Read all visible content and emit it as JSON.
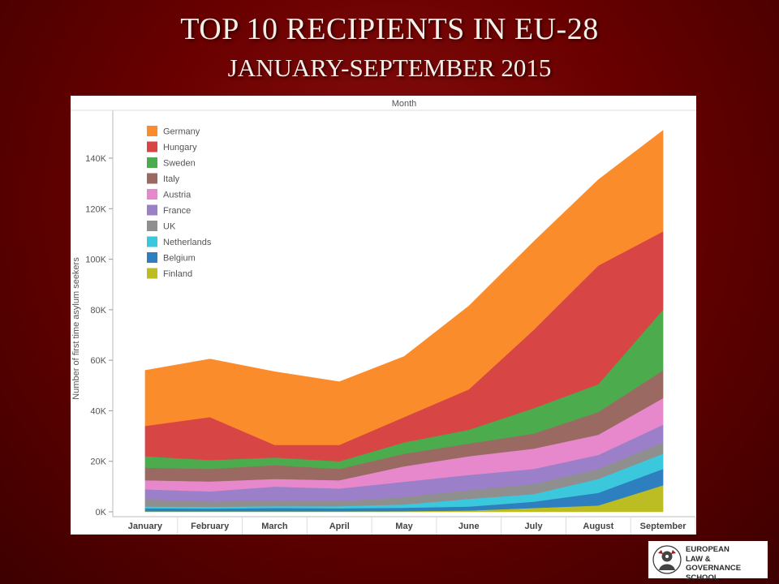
{
  "slide": {
    "title": "TOP 10 RECIPIENTS IN EU-28",
    "subtitle": "JANUARY-SEPTEMBER 2015"
  },
  "logo": {
    "line1": "EUROPEAN",
    "line2": "LAW & GOVERNANCE",
    "line3": "SCHOOL"
  },
  "chart_data": {
    "type": "area",
    "stacked": true,
    "header": "Month",
    "ylabel": "Number of first time asylum seekers",
    "xlabel": "",
    "categories": [
      "January",
      "February",
      "March",
      "April",
      "May",
      "June",
      "July",
      "August",
      "September"
    ],
    "ylim": [
      0,
      160000
    ],
    "yticks": [
      0,
      20000,
      40000,
      60000,
      80000,
      100000,
      120000,
      140000
    ],
    "ytick_labels": [
      "0K",
      "20K",
      "40K",
      "60K",
      "80K",
      "100K",
      "120K",
      "140K"
    ],
    "grid": false,
    "legend_position": "top-left",
    "series": [
      {
        "name": "Finland",
        "color": "#bcbd22",
        "values": [
          200,
          200,
          200,
          200,
          300,
          500,
          1500,
          2500,
          10500
        ]
      },
      {
        "name": "Belgium",
        "color": "#2e7fc0",
        "values": [
          1200,
          1100,
          1300,
          1200,
          1300,
          1600,
          2500,
          5000,
          6500
        ]
      },
      {
        "name": "Netherlands",
        "color": "#3cc8dc",
        "values": [
          700,
          700,
          700,
          800,
          1300,
          3000,
          3000,
          5500,
          6000
        ]
      },
      {
        "name": "UK",
        "color": "#8f8f8f",
        "values": [
          2800,
          2100,
          2300,
          2000,
          3000,
          3500,
          4000,
          4000,
          4500
        ]
      },
      {
        "name": "France",
        "color": "#9b7fc8",
        "values": [
          4000,
          4000,
          5500,
          5000,
          6000,
          6000,
          6000,
          5500,
          7000
        ]
      },
      {
        "name": "Austria",
        "color": "#e888cc",
        "values": [
          3600,
          3900,
          3000,
          3300,
          6100,
          7400,
          8000,
          8000,
          10500
        ]
      },
      {
        "name": "Italy",
        "color": "#9a6a62",
        "values": [
          5000,
          5000,
          5500,
          4500,
          5000,
          5000,
          6000,
          9000,
          11000
        ]
      },
      {
        "name": "Sweden",
        "color": "#4cab4c",
        "values": [
          4500,
          3500,
          3000,
          3000,
          4500,
          5500,
          10000,
          11000,
          24000
        ]
      },
      {
        "name": "Hungary",
        "color": "#d84545",
        "values": [
          12000,
          17000,
          5000,
          6500,
          10000,
          16000,
          31000,
          47000,
          31000
        ]
      },
      {
        "name": "Germany",
        "color": "#fb8c2c",
        "values": [
          22000,
          23000,
          29000,
          25000,
          24000,
          33000,
          35000,
          34000,
          40000
        ]
      }
    ],
    "legend_order": [
      "Germany",
      "Hungary",
      "Sweden",
      "Italy",
      "Austria",
      "France",
      "UK",
      "Netherlands",
      "Belgium",
      "Finland"
    ]
  }
}
